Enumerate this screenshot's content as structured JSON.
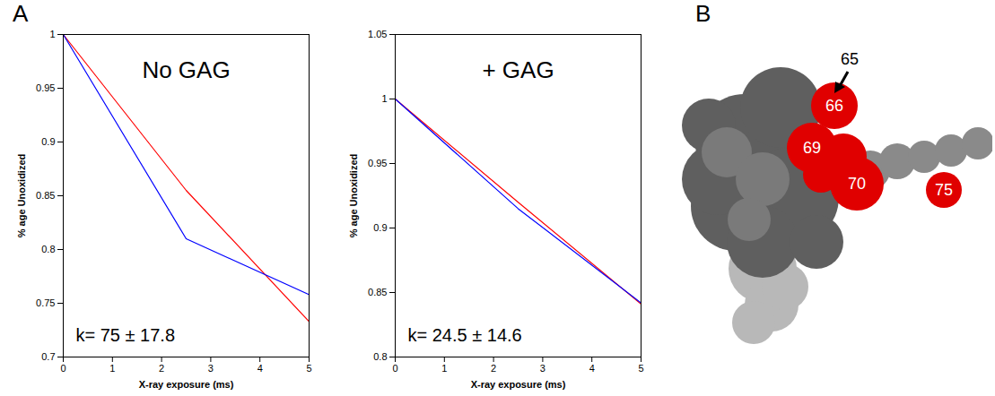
{
  "chart_data": [
    {
      "type": "line",
      "title": "No GAG",
      "annotation": "k= 75 ± 17.8",
      "x_label": "X-ray exposure (ms)",
      "y_label": "% age Unoxidized",
      "x": [
        0,
        2.5,
        5
      ],
      "series": [
        {
          "color": "#ff0000",
          "values": [
            1,
            0.855,
            0.733
          ]
        },
        {
          "color": "#0000ff",
          "values": [
            1,
            0.81,
            0.758
          ]
        }
      ],
      "xlim": [
        0,
        5
      ],
      "xticks": [
        0,
        1,
        2,
        3,
        4,
        5
      ],
      "ylim": [
        0.7,
        1
      ],
      "yticks": [
        0.7,
        0.75,
        0.8,
        0.85,
        0.9,
        0.95,
        1
      ],
      "grid": false
    },
    {
      "type": "line",
      "title": "+ GAG",
      "annotation": "k= 24.5 ± 14.6",
      "x_label": "X-ray exposure (ms)",
      "y_label": "% age Unoxidized",
      "x": [
        0,
        2.5,
        5
      ],
      "series": [
        {
          "color": "#ff0000",
          "values": [
            1,
            0.92,
            0.841
          ]
        },
        {
          "color": "#0000ff",
          "values": [
            1,
            0.915,
            0.842
          ]
        }
      ],
      "xlim": [
        0,
        5
      ],
      "xticks": [
        0,
        1,
        2,
        3,
        4,
        5
      ],
      "ylim": [
        0.8,
        1.05
      ],
      "yticks": [
        0.8,
        0.85,
        0.9,
        0.95,
        1,
        1.05
      ],
      "grid": false
    }
  ],
  "panels": {
    "A": {
      "letter": "A"
    },
    "B": {
      "letter": "B",
      "arrow_label": "65",
      "residue_labels": [
        "66",
        "69",
        "70",
        "75"
      ]
    }
  }
}
